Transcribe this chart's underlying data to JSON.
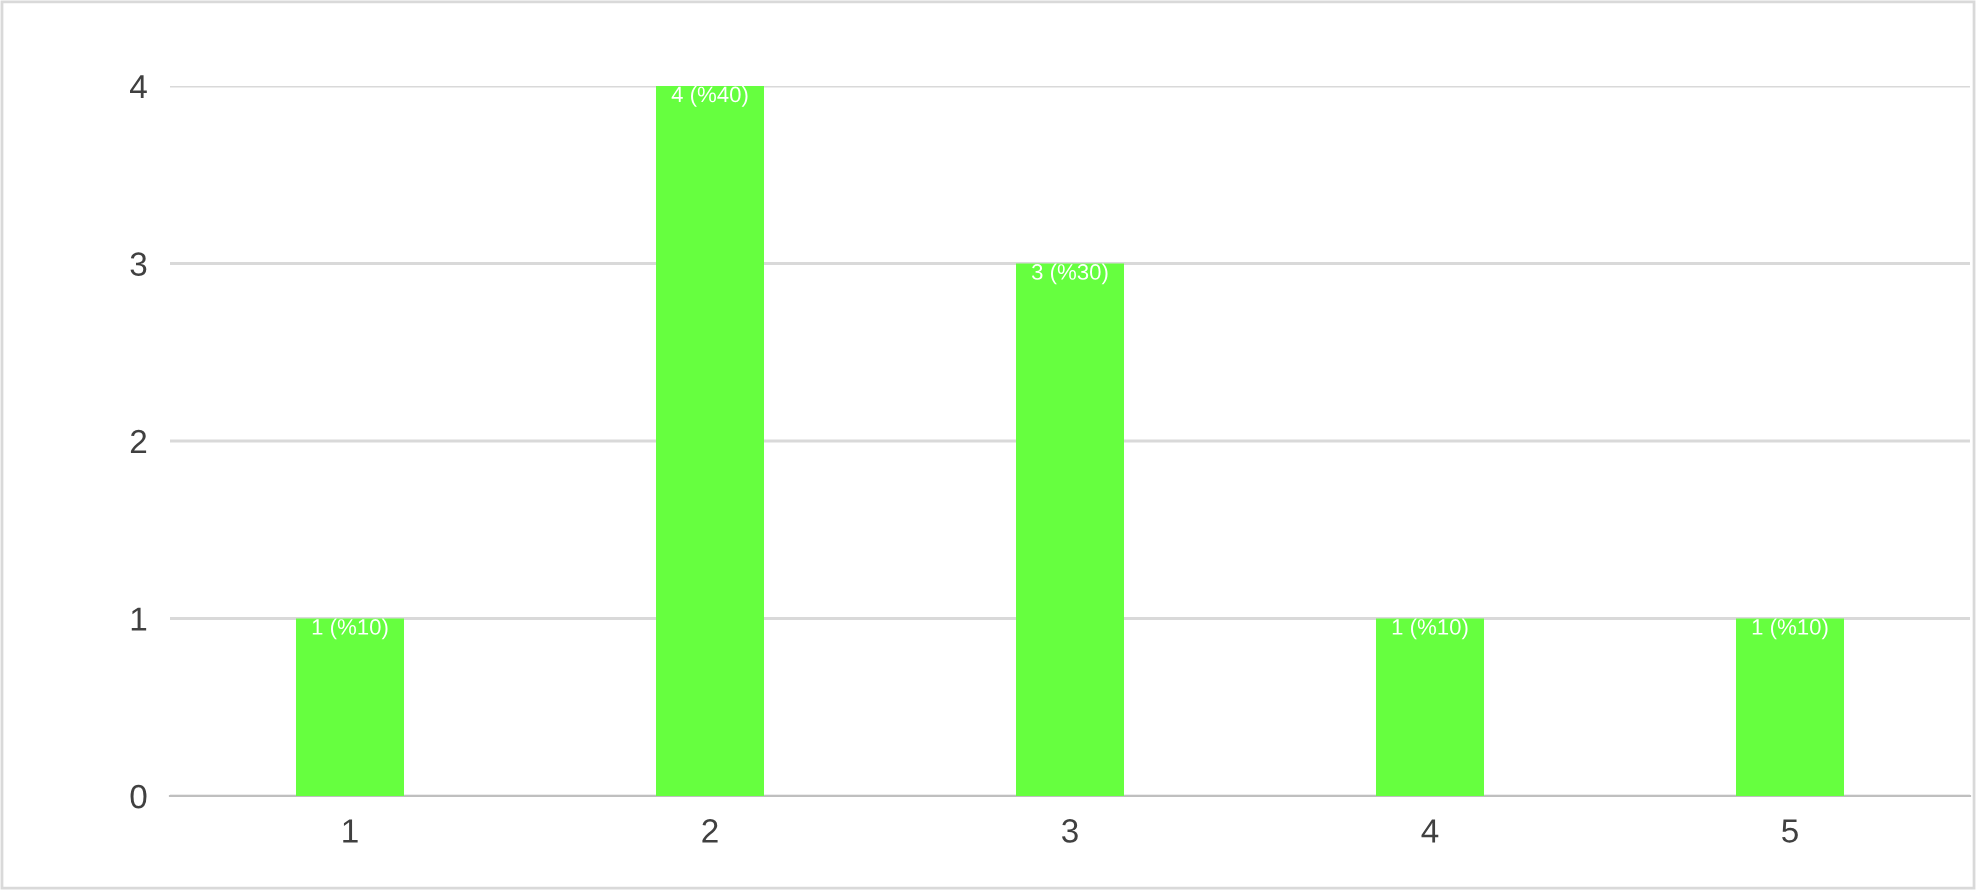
{
  "chart_data": {
    "type": "bar",
    "categories": [
      "1",
      "2",
      "3",
      "4",
      "5"
    ],
    "values": [
      1,
      4,
      3,
      1,
      1
    ],
    "value_labels": [
      "1 (%10)",
      "4 (%40)",
      "3 (%30)",
      "1 (%10)",
      "1 (%10)"
    ],
    "color": "#66ff3f",
    "ylim": [
      0,
      4
    ],
    "yticks": [
      0,
      1,
      2,
      3,
      4
    ],
    "grid": "y"
  }
}
